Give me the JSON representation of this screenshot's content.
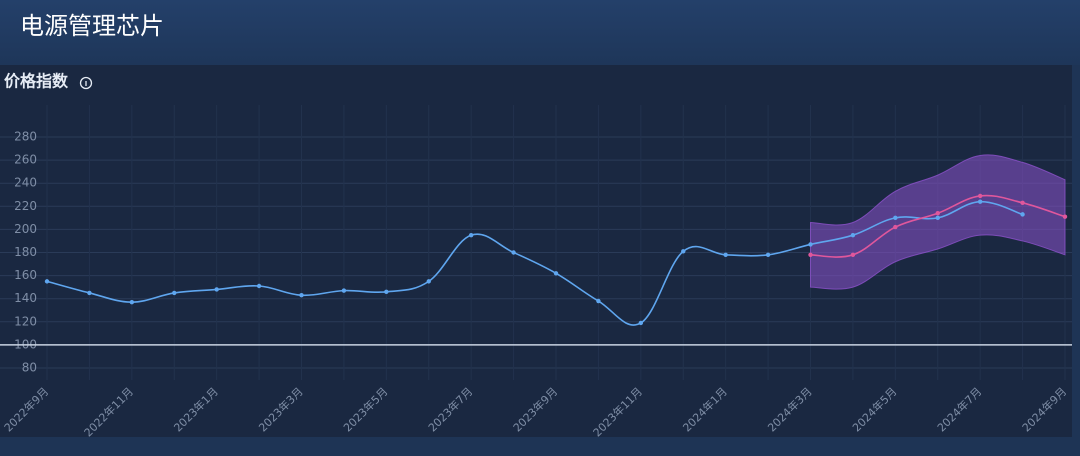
{
  "header": {
    "title": "电源管理芯片"
  },
  "chart_data": {
    "type": "line",
    "title": "价格指数",
    "categories": [
      "2022年9月",
      null,
      "2022年11月",
      null,
      "2023年1月",
      null,
      "2023年3月",
      null,
      "2023年5月",
      null,
      "2023年7月",
      null,
      "2023年9月",
      null,
      "2023年11月",
      null,
      "2024年1月",
      null,
      "2024年3月",
      null,
      "2024年5月",
      null,
      "2024年7月",
      null,
      "2024年9月"
    ],
    "series": [
      {
        "color": "#5fa6ef",
        "values": [
          155,
          145,
          137,
          145,
          148,
          151,
          143,
          147,
          146,
          155,
          195,
          180,
          162,
          138,
          119,
          181,
          178,
          178,
          187,
          195,
          210,
          210,
          224,
          213,
          null
        ]
      },
      {
        "color": "#e0579c",
        "values": [
          null,
          null,
          null,
          null,
          null,
          null,
          null,
          null,
          null,
          null,
          null,
          null,
          null,
          null,
          null,
          null,
          null,
          null,
          178,
          178,
          202,
          214,
          229,
          223,
          211
        ]
      }
    ],
    "band": {
      "color": "#8d52cc",
      "upper": [
        null,
        null,
        null,
        null,
        null,
        null,
        null,
        null,
        null,
        null,
        null,
        null,
        null,
        null,
        null,
        null,
        null,
        null,
        206,
        206,
        233,
        247,
        264,
        258,
        243
      ],
      "lower": [
        null,
        null,
        null,
        null,
        null,
        null,
        null,
        null,
        null,
        null,
        null,
        null,
        null,
        null,
        null,
        null,
        null,
        null,
        150,
        150,
        172,
        183,
        195,
        190,
        178
      ]
    },
    "reference_line": 100,
    "ylim": [
      80,
      280
    ],
    "yticks": [
      80,
      100,
      120,
      140,
      160,
      180,
      200,
      220,
      240,
      260,
      280
    ],
    "grid": true
  }
}
